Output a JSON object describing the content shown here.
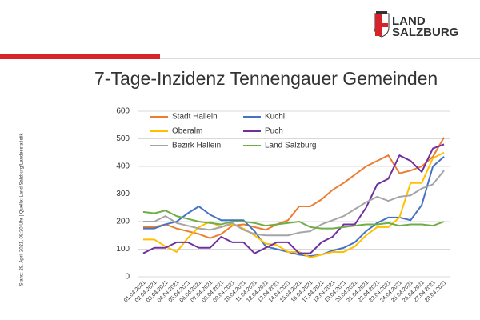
{
  "logo": [
    "LAND",
    "SALZBURG"
  ],
  "side_note": "Stand: 29. April 2021, 08:30 Uhr | Quelle: Land Salzburg/Landesstatistik",
  "chart_data": {
    "type": "line",
    "title": "7-Tage-Inzidenz Tennengauer Gemeinden",
    "categories": [
      "01.04.2021",
      "02.04.2021",
      "03.04.2021",
      "04.04.2021",
      "05.04.2021",
      "06.04.2021",
      "07.04.2021",
      "08.04.2021",
      "09.04.2021",
      "10.04.2021",
      "11.04.2021",
      "12.04.2021",
      "13.04.2021",
      "14.04.2021",
      "15.04.2021",
      "16.04.2021",
      "17.04.2021",
      "18.04.2021",
      "19.04.2021",
      "20.04.2021",
      "21.04.2021",
      "22.04.2021",
      "23.04.2021",
      "24.04.2021",
      "25.04.2021",
      "26.04.2021",
      "27.04.2021",
      "28.04.2021"
    ],
    "series": [
      {
        "name": "Stadt Hallein",
        "color": "#ED7D31",
        "values": [
          180,
          180,
          190,
          175,
          165,
          155,
          140,
          155,
          185,
          190,
          180,
          170,
          190,
          205,
          255,
          255,
          280,
          315,
          340,
          370,
          400,
          420,
          440,
          375,
          385,
          400,
          435,
          505
        ]
      },
      {
        "name": "Kuchl",
        "color": "#4472C4",
        "values": [
          175,
          175,
          190,
          200,
          230,
          255,
          225,
          205,
          205,
          205,
          165,
          110,
          100,
          90,
          80,
          75,
          80,
          95,
          105,
          125,
          165,
          195,
          215,
          215,
          205,
          260,
          400,
          435
        ]
      },
      {
        "name": "Oberalm",
        "color": "#FFC000",
        "values": [
          135,
          135,
          110,
          90,
          140,
          180,
          200,
          180,
          190,
          175,
          150,
          120,
          115,
          90,
          90,
          70,
          80,
          90,
          90,
          110,
          150,
          180,
          180,
          215,
          340,
          340,
          430,
          450
        ]
      },
      {
        "name": "Puch",
        "color": "#7030A0",
        "values": [
          85,
          105,
          105,
          125,
          125,
          105,
          105,
          145,
          125,
          125,
          85,
          105,
          125,
          125,
          85,
          85,
          125,
          145,
          190,
          190,
          250,
          335,
          355,
          440,
          420,
          380,
          465,
          480
        ]
      },
      {
        "name": "Bezirk Hallein",
        "color": "#A5A5A5",
        "values": [
          200,
          200,
          220,
          195,
          185,
          175,
          170,
          180,
          195,
          170,
          155,
          150,
          150,
          150,
          160,
          165,
          190,
          205,
          220,
          245,
          270,
          290,
          275,
          290,
          295,
          320,
          335,
          385
        ]
      },
      {
        "name": "Land Salzburg",
        "color": "#70AD47",
        "values": [
          235,
          230,
          240,
          220,
          210,
          200,
          195,
          190,
          200,
          200,
          195,
          185,
          190,
          195,
          200,
          180,
          175,
          175,
          180,
          185,
          190,
          190,
          195,
          185,
          190,
          190,
          185,
          200
        ]
      }
    ],
    "ylim": [
      0,
      600
    ],
    "yticks": [
      0,
      100,
      200,
      300,
      400,
      500,
      600
    ],
    "grid": true,
    "legend": "top-left"
  }
}
